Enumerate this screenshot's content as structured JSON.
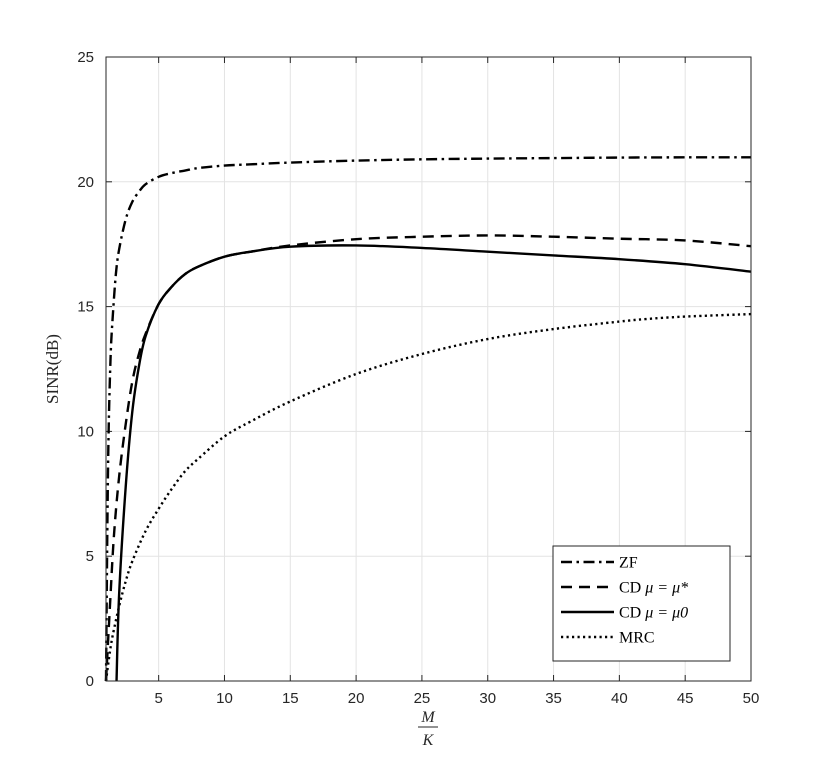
{
  "chart_data": {
    "type": "line",
    "title": "",
    "xlabel_num": "M",
    "xlabel_den": "K",
    "ylabel": "SINR(dB)",
    "xlim": [
      1,
      50
    ],
    "ylim": [
      0,
      25
    ],
    "xticks": [
      5,
      10,
      15,
      20,
      25,
      30,
      35,
      40,
      45,
      50
    ],
    "yticks": [
      0,
      5,
      10,
      15,
      20,
      25
    ],
    "grid": true,
    "legend_position": "bottom-right",
    "series": [
      {
        "name": "ZF",
        "legend_prefix": "ZF",
        "legend_math": "",
        "style": "dashdot",
        "color": "#000000",
        "x": [
          1.0,
          1.1,
          1.2,
          1.35,
          1.5,
          1.75,
          2,
          2.5,
          3,
          3.5,
          4,
          5,
          6,
          7,
          8,
          10,
          12,
          15,
          20,
          25,
          30,
          35,
          40,
          45,
          50
        ],
        "y": [
          0,
          6,
          10,
          13,
          14.5,
          16.3,
          17.3,
          18.5,
          19.2,
          19.6,
          19.9,
          20.2,
          20.35,
          20.45,
          20.55,
          20.65,
          20.7,
          20.77,
          20.85,
          20.9,
          20.93,
          20.95,
          20.97,
          20.98,
          20.98
        ]
      },
      {
        "name": "CD μ=μ*",
        "legend_prefix": "CD ",
        "legend_math": "μ = μ*",
        "style": "dashed",
        "color": "#000000",
        "x": [
          1.0,
          1.3,
          1.6,
          2,
          2.5,
          3,
          3.5,
          4,
          5,
          6,
          7,
          8,
          10,
          12,
          15,
          20,
          25,
          30,
          35,
          40,
          45,
          50
        ],
        "y": [
          0,
          3,
          5.8,
          8.2,
          10.3,
          12.0,
          13.1,
          13.9,
          15.1,
          15.8,
          16.3,
          16.6,
          17.0,
          17.2,
          17.45,
          17.7,
          17.8,
          17.85,
          17.8,
          17.72,
          17.65,
          17.42
        ]
      },
      {
        "name": "CD μ=μ0",
        "legend_prefix": "CD ",
        "legend_math": "μ = μ0",
        "style": "solid",
        "color": "#000000",
        "x": [
          1.8,
          2,
          2.5,
          3,
          3.5,
          4,
          5,
          6,
          7,
          8,
          10,
          12,
          15,
          20,
          25,
          30,
          35,
          40,
          45,
          50
        ],
        "y": [
          0,
          3.5,
          7.8,
          10.8,
          12.6,
          13.8,
          15.1,
          15.8,
          16.3,
          16.6,
          17.0,
          17.2,
          17.4,
          17.45,
          17.35,
          17.2,
          17.05,
          16.9,
          16.7,
          16.4
        ]
      },
      {
        "name": "MRC",
        "legend_prefix": "MRC",
        "legend_math": "",
        "style": "dotted",
        "color": "#000000",
        "x": [
          1.0,
          1.25,
          1.5,
          2,
          2.5,
          3,
          4,
          5,
          6,
          7,
          8,
          10,
          12,
          15,
          20,
          25,
          30,
          35,
          40,
          42,
          45,
          50
        ],
        "y": [
          0,
          1.0,
          1.8,
          3.0,
          4.0,
          4.8,
          6.0,
          6.9,
          7.7,
          8.4,
          8.9,
          9.8,
          10.4,
          11.2,
          12.3,
          13.1,
          13.7,
          14.1,
          14.4,
          14.5,
          14.6,
          14.7
        ]
      }
    ]
  }
}
